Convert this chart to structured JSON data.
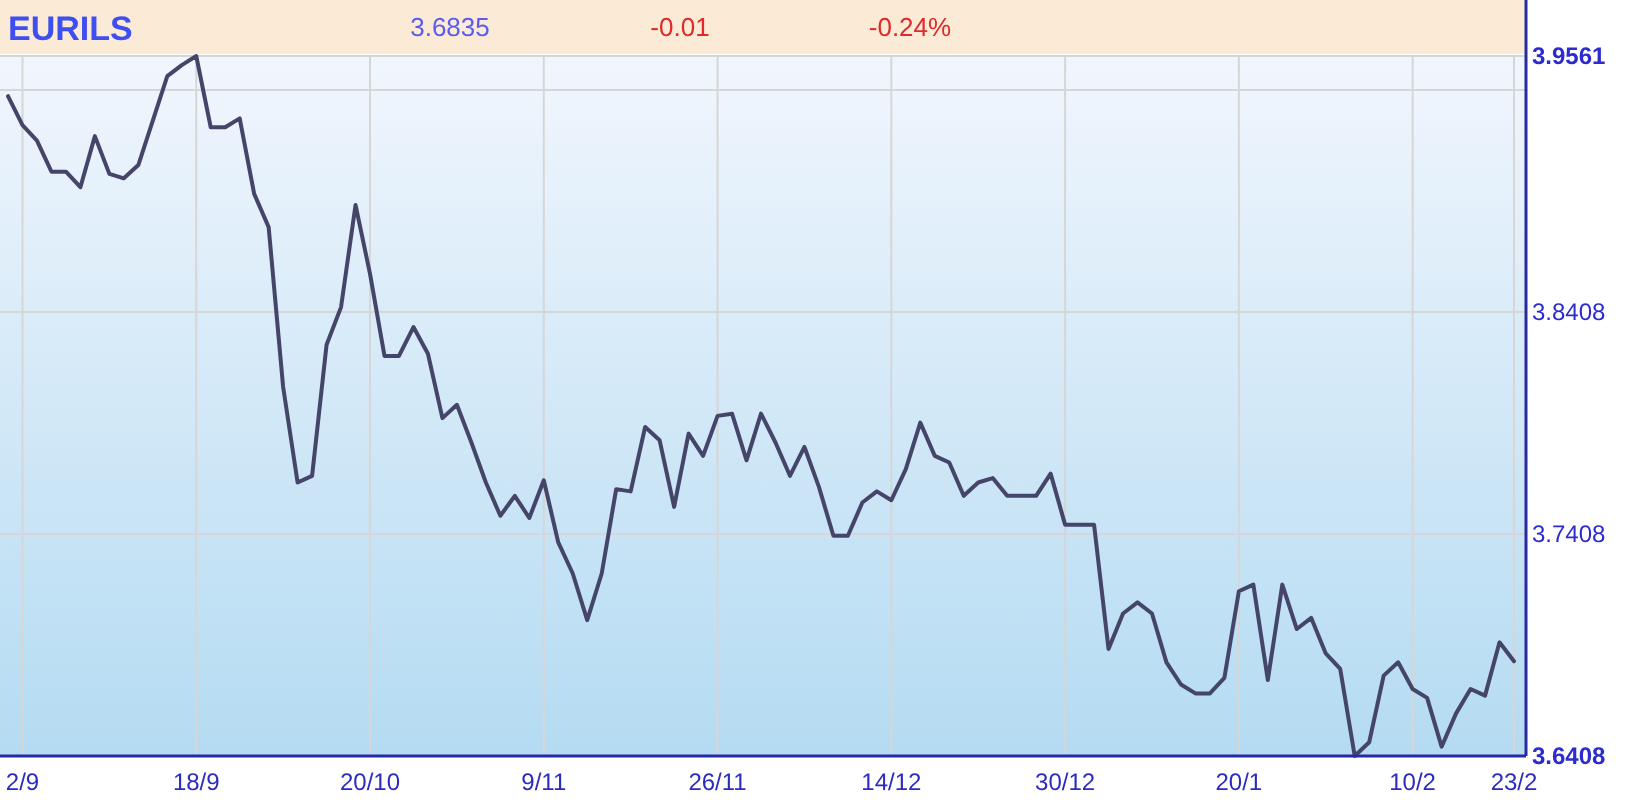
{
  "chart_data": {
    "type": "line",
    "title": "EURILS",
    "subtitle": "3.6835",
    "annotations": [
      "-0.01",
      "-0.24%"
    ],
    "categories": [
      null,
      "2/9",
      null,
      null,
      null,
      null,
      null,
      null,
      null,
      null,
      null,
      null,
      null,
      "18/9",
      null,
      null,
      null,
      null,
      null,
      null,
      null,
      null,
      null,
      null,
      null,
      "20/10",
      null,
      null,
      null,
      null,
      null,
      null,
      null,
      null,
      null,
      null,
      null,
      "9/11",
      null,
      null,
      null,
      null,
      null,
      null,
      null,
      null,
      null,
      null,
      null,
      "26/11",
      null,
      null,
      null,
      null,
      null,
      null,
      null,
      null,
      null,
      null,
      null,
      "14/12",
      null,
      null,
      null,
      null,
      null,
      null,
      null,
      null,
      null,
      null,
      null,
      "30/12",
      null,
      null,
      null,
      null,
      null,
      null,
      null,
      null,
      null,
      null,
      null,
      "20/1",
      null,
      null,
      null,
      null,
      null,
      null,
      null,
      null,
      null,
      null,
      null,
      "10/2",
      null,
      null,
      null,
      null,
      null,
      null,
      "23/2"
    ],
    "series": [
      {
        "color": "#45456a",
        "values": [
          3.938,
          3.925,
          3.918,
          3.904,
          3.904,
          3.897,
          3.92,
          3.903,
          3.901,
          3.907,
          3.927,
          3.947,
          3.952,
          3.9561,
          3.924,
          3.924,
          3.928,
          3.894,
          3.879,
          3.807,
          3.764,
          3.767,
          3.826,
          3.843,
          3.889,
          3.858,
          3.821,
          3.821,
          3.834,
          3.822,
          3.793,
          3.799,
          3.782,
          3.764,
          3.749,
          3.758,
          3.748,
          3.765,
          3.737,
          3.723,
          3.702,
          3.723,
          3.761,
          3.76,
          3.789,
          3.783,
          3.753,
          3.786,
          3.776,
          3.794,
          3.795,
          3.774,
          3.795,
          3.782,
          3.767,
          3.78,
          3.762,
          3.74,
          3.74,
          3.755,
          3.76,
          3.756,
          3.77,
          3.791,
          3.776,
          3.773,
          3.758,
          3.764,
          3.766,
          3.758,
          3.758,
          3.758,
          3.768,
          3.745,
          3.745,
          3.745,
          3.689,
          3.705,
          3.71,
          3.705,
          3.683,
          3.673,
          3.669,
          3.669,
          3.676,
          3.715,
          3.718,
          3.675,
          3.718,
          3.698,
          3.703,
          3.687,
          3.68,
          3.6408,
          3.647,
          3.677,
          3.683,
          3.671,
          3.667,
          3.645,
          3.66,
          3.671,
          3.668,
          3.692,
          3.6835
        ]
      }
    ],
    "ylim": [
      3.6408,
      3.9561
    ],
    "yticks": [
      3.6408,
      3.7408,
      3.8408,
      {
        "value": 3.9408,
        "label": null
      },
      3.9561
    ],
    "grid": true
  }
}
